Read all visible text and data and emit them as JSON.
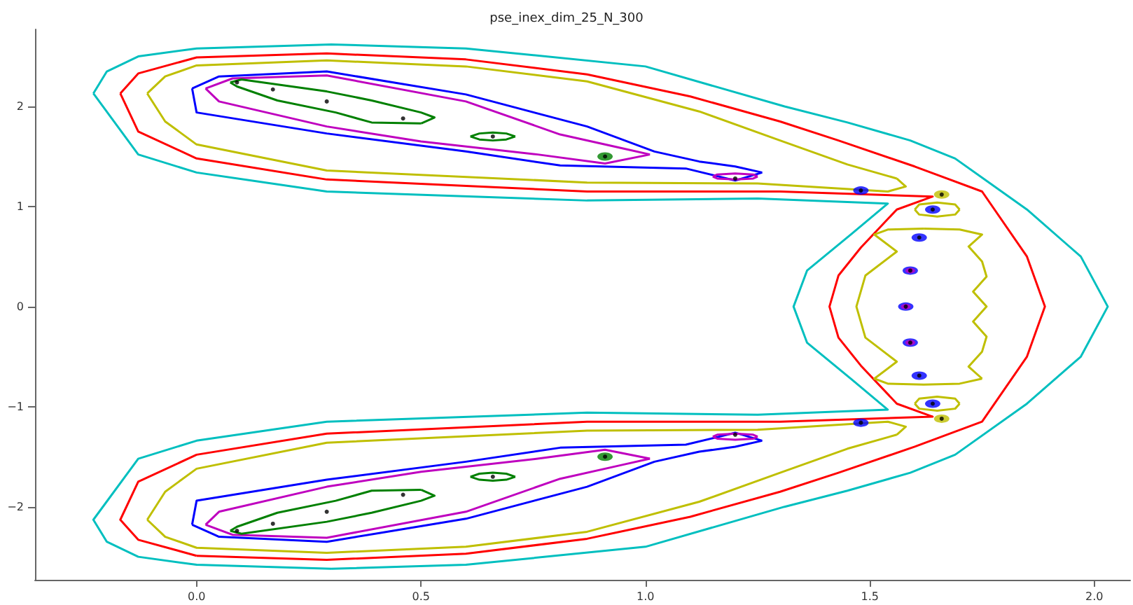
{
  "chart_data": {
    "type": "line",
    "title": "pse_inex_dim_25_N_300",
    "xlim": [
      -0.36,
      2.08
    ],
    "ylim": [
      -2.73,
      2.77
    ],
    "xticks": [
      {
        "value": 0,
        "label": "0.0"
      },
      {
        "value": 0.5,
        "label": "0.5"
      },
      {
        "value": 1,
        "label": "1.0"
      },
      {
        "value": 1.5,
        "label": "1.5"
      },
      {
        "value": 2,
        "label": "2.0"
      }
    ],
    "yticks": [
      {
        "value": -2,
        "label": "−2"
      },
      {
        "value": -1,
        "label": "−1"
      },
      0,
      1,
      2
    ],
    "grid": false,
    "series": [
      {
        "color": "#00bfbf",
        "x": [
          -0.23,
          -0.2,
          -0.13,
          0,
          0.3,
          0.6,
          1.0,
          1.31,
          1.45,
          1.59,
          1.69,
          1.85,
          1.97,
          2.03,
          1.97,
          1.85,
          1.69,
          1.59,
          1.45,
          1.31,
          1.0,
          0.6,
          0.3,
          0,
          -0.13,
          -0.2,
          -0.23,
          -0.13,
          0,
          0.29,
          0.87,
          1.25,
          1.54,
          1.46,
          1.36,
          1.33,
          1.36,
          1.46,
          1.54,
          1.25,
          0.87,
          0.29,
          0,
          -0.13,
          -0.23
        ],
        "values": [
          2.13,
          2.35,
          2.5,
          2.58,
          2.62,
          2.58,
          2.4,
          2.0,
          1.84,
          1.66,
          1.48,
          0.97,
          0.5,
          0,
          -0.5,
          -0.97,
          -1.48,
          -1.66,
          -1.84,
          -2.0,
          -2.4,
          -2.58,
          -2.62,
          -2.58,
          -2.5,
          -2.35,
          -2.13,
          -1.52,
          -1.34,
          -1.15,
          -1.06,
          -1.08,
          -1.03,
          -0.73,
          -0.36,
          0,
          0.36,
          0.73,
          1.03,
          1.08,
          1.06,
          1.15,
          1.34,
          1.52,
          2.13
        ]
      },
      {
        "color": "#ff0000",
        "x": [
          -0.17,
          -0.13,
          0,
          0.29,
          0.6,
          0.87,
          1.1,
          1.3,
          1.43,
          1.6,
          1.75,
          1.85,
          1.89,
          1.85,
          1.75,
          1.6,
          1.43,
          1.3,
          1.1,
          0.87,
          0.6,
          0.29,
          0,
          -0.13,
          -0.17,
          -0.13,
          0,
          0.29,
          0.87,
          1.3,
          1.64,
          1.56,
          1.48,
          1.43,
          1.41,
          1.43,
          1.48,
          1.56,
          1.64,
          1.3,
          0.87,
          0.29,
          0,
          -0.13,
          -0.17
        ],
        "values": [
          2.13,
          2.33,
          2.49,
          2.53,
          2.47,
          2.32,
          2.1,
          1.85,
          1.66,
          1.4,
          1.15,
          0.5,
          0,
          -0.5,
          -1.15,
          -1.4,
          -1.66,
          -1.85,
          -2.1,
          -2.32,
          -2.47,
          -2.53,
          -2.49,
          -2.33,
          -2.13,
          -1.75,
          -1.48,
          -1.27,
          -1.15,
          -1.15,
          -1.1,
          -0.97,
          -0.59,
          -0.31,
          0,
          0.31,
          0.59,
          0.97,
          1.1,
          1.15,
          1.15,
          1.27,
          1.48,
          1.75,
          2.13
        ]
      },
      {
        "color": "#bfbf00",
        "x": [
          -0.11,
          -0.07,
          0,
          0.29,
          0.6,
          0.87,
          1.12,
          1.3,
          1.45,
          1.56,
          1.58,
          1.54,
          1.25,
          0.87,
          0.29,
          0,
          -0.07,
          -0.11
        ],
        "values": [
          2.13,
          2.3,
          2.41,
          2.46,
          2.4,
          2.25,
          1.95,
          1.66,
          1.42,
          1.28,
          1.2,
          1.15,
          1.23,
          1.24,
          1.36,
          1.62,
          1.85,
          2.13
        ]
      },
      {
        "color": "#bfbf00",
        "x": [
          -0.11,
          -0.07,
          0,
          0.29,
          0.6,
          0.87,
          1.12,
          1.3,
          1.45,
          1.56,
          1.58,
          1.54,
          1.25,
          0.87,
          0.29,
          0,
          -0.07,
          -0.11
        ],
        "values": [
          -2.13,
          -2.3,
          -2.41,
          -2.46,
          -2.4,
          -2.25,
          -1.95,
          -1.66,
          -1.42,
          -1.28,
          -1.2,
          -1.15,
          -1.23,
          -1.24,
          -1.36,
          -1.62,
          -1.85,
          -2.13
        ]
      },
      {
        "color": "#bfbf00",
        "x": [
          1.62,
          1.7,
          1.75,
          1.72,
          1.75,
          1.76,
          1.73,
          1.76,
          1.73,
          1.76,
          1.75,
          1.72,
          1.75,
          1.7,
          1.62,
          1.54,
          1.51,
          1.56,
          1.49,
          1.47,
          1.49,
          1.56,
          1.51,
          1.54,
          1.62
        ],
        "values": [
          0.78,
          0.77,
          0.72,
          0.6,
          0.45,
          0.3,
          0.15,
          0,
          -0.15,
          -0.3,
          -0.45,
          -0.6,
          -0.72,
          -0.77,
          -0.78,
          -0.77,
          -0.72,
          -0.55,
          -0.31,
          0,
          0.31,
          0.55,
          0.72,
          0.77,
          0.78
        ]
      },
      {
        "color": "#bfbf00",
        "x": [
          1.7,
          1.69,
          1.65,
          1.61,
          1.6,
          1.61,
          1.65,
          1.69,
          1.7
        ],
        "values": [
          0.97,
          1.02,
          1.04,
          1.02,
          0.97,
          0.92,
          0.9,
          0.92,
          0.97
        ]
      },
      {
        "color": "#bfbf00",
        "x": [
          1.7,
          1.69,
          1.65,
          1.61,
          1.6,
          1.61,
          1.65,
          1.69,
          1.7
        ],
        "values": [
          -0.97,
          -1.02,
          -1.04,
          -1.02,
          -0.97,
          -0.92,
          -0.9,
          -0.92,
          -0.97
        ]
      },
      {
        "color": "#0000ff",
        "x": [
          -0.01,
          0.05,
          0.29,
          0.6,
          0.87,
          1.02,
          1.12,
          1.2,
          1.26,
          1.2,
          1.09,
          0.81,
          0.6,
          0.29,
          0,
          -0.01
        ],
        "values": [
          2.18,
          2.3,
          2.35,
          2.12,
          1.8,
          1.55,
          1.45,
          1.4,
          1.34,
          1.26,
          1.38,
          1.41,
          1.55,
          1.73,
          1.94,
          2.18
        ]
      },
      {
        "color": "#0000ff",
        "x": [
          -0.01,
          0.05,
          0.29,
          0.6,
          0.87,
          1.02,
          1.12,
          1.2,
          1.26,
          1.2,
          1.09,
          0.81,
          0.6,
          0.29,
          0,
          -0.01
        ],
        "values": [
          -2.18,
          -2.3,
          -2.35,
          -2.12,
          -1.8,
          -1.55,
          -1.45,
          -1.4,
          -1.34,
          -1.26,
          -1.38,
          -1.41,
          -1.55,
          -1.73,
          -1.94,
          -2.18
        ]
      },
      {
        "color": "#bf00bf",
        "x": [
          0.02,
          0.08,
          0.29,
          0.6,
          0.81,
          0.95,
          1.01,
          0.91,
          0.76,
          0.5,
          0.29,
          0.05,
          0.02
        ],
        "values": [
          2.18,
          2.28,
          2.31,
          2.05,
          1.72,
          1.58,
          1.52,
          1.43,
          1.52,
          1.65,
          1.8,
          2.05,
          2.18
        ]
      },
      {
        "color": "#bf00bf",
        "x": [
          0.02,
          0.08,
          0.29,
          0.6,
          0.81,
          0.95,
          1.01,
          0.91,
          0.76,
          0.5,
          0.29,
          0.05,
          0.02
        ],
        "values": [
          -2.18,
          -2.28,
          -2.31,
          -2.05,
          -1.72,
          -1.58,
          -1.52,
          -1.43,
          -1.52,
          -1.65,
          -1.8,
          -2.05,
          -2.18
        ]
      },
      {
        "color": "#bf00bf",
        "x": [
          1.25,
          1.24,
          1.2,
          1.16,
          1.15,
          1.16,
          1.2,
          1.24,
          1.25
        ],
        "values": [
          1.3,
          1.32,
          1.33,
          1.32,
          1.3,
          1.28,
          1.27,
          1.28,
          1.3
        ]
      },
      {
        "color": "#bf00bf",
        "x": [
          1.25,
          1.24,
          1.2,
          1.16,
          1.15,
          1.16,
          1.2,
          1.24,
          1.25
        ],
        "values": [
          -1.3,
          -1.32,
          -1.33,
          -1.32,
          -1.3,
          -1.28,
          -1.27,
          -1.28,
          -1.3
        ]
      },
      {
        "color": "#008000",
        "x": [
          0.075,
          0.1,
          0.29,
          0.39,
          0.5,
          0.53,
          0.5,
          0.39,
          0.31,
          0.18,
          0.09,
          0.075
        ],
        "values": [
          2.24,
          2.27,
          2.15,
          2.06,
          1.94,
          1.89,
          1.83,
          1.84,
          1.94,
          2.06,
          2.2,
          2.24
        ]
      },
      {
        "color": "#008000",
        "x": [
          0.075,
          0.1,
          0.29,
          0.39,
          0.5,
          0.53,
          0.5,
          0.39,
          0.31,
          0.18,
          0.09,
          0.075
        ],
        "values": [
          -2.24,
          -2.27,
          -2.15,
          -2.06,
          -1.94,
          -1.89,
          -1.83,
          -1.84,
          -1.94,
          -2.06,
          -2.2,
          -2.24
        ]
      },
      {
        "color": "#008000",
        "x": [
          0.71,
          0.69,
          0.66,
          0.63,
          0.61,
          0.63,
          0.66,
          0.69,
          0.71
        ],
        "values": [
          1.7,
          1.73,
          1.74,
          1.73,
          1.7,
          1.67,
          1.66,
          1.67,
          1.7
        ]
      },
      {
        "color": "#008000",
        "x": [
          0.71,
          0.69,
          0.66,
          0.63,
          0.61,
          0.63,
          0.66,
          0.69,
          0.71
        ],
        "values": [
          -1.7,
          -1.73,
          -1.74,
          -1.73,
          -1.7,
          -1.67,
          -1.66,
          -1.67,
          -1.7
        ]
      },
      {
        "type": "scatter",
        "marker": "circle",
        "color": "#0000ff",
        "x": [
          1.48,
          1.64,
          1.61,
          1.59,
          1.58,
          1.59,
          1.61,
          1.64,
          1.48
        ],
        "values": [
          1.16,
          0.97,
          0.69,
          0.36,
          0,
          -0.36,
          -0.69,
          -0.97,
          -1.16
        ]
      },
      {
        "type": "scatter",
        "marker": "circle",
        "color": "#bfbf00",
        "x": [
          1.66,
          1.66
        ],
        "values": [
          1.12,
          -1.12
        ]
      },
      {
        "type": "scatter",
        "marker": "circle",
        "color": "#008000",
        "x": [
          0.91,
          0.91
        ],
        "values": [
          1.5,
          -1.5
        ]
      },
      {
        "type": "scatter",
        "marker": "circle",
        "color": "#bf00bf",
        "x": [
          1.59,
          1.58,
          1.59
        ],
        "values": [
          0.36,
          0,
          -0.36
        ]
      },
      {
        "type": "scatter",
        "marker": "circle",
        "color": "#000000",
        "x": [
          0.09,
          0.17,
          0.29,
          0.46,
          0.66,
          0.91,
          1.2,
          1.48,
          1.66,
          1.64,
          1.61,
          1.59,
          1.58,
          1.59,
          1.61,
          1.64,
          1.66,
          1.48,
          1.2,
          0.91,
          0.66,
          0.46,
          0.29,
          0.17,
          0.09
        ],
        "values": [
          2.24,
          2.17,
          2.05,
          1.88,
          1.7,
          1.5,
          1.28,
          1.16,
          1.12,
          0.97,
          0.69,
          0.36,
          0,
          -0.36,
          -0.69,
          -0.97,
          -1.12,
          -1.16,
          -1.28,
          -1.5,
          -1.7,
          -1.88,
          -2.05,
          -2.17,
          -2.24
        ]
      }
    ]
  }
}
